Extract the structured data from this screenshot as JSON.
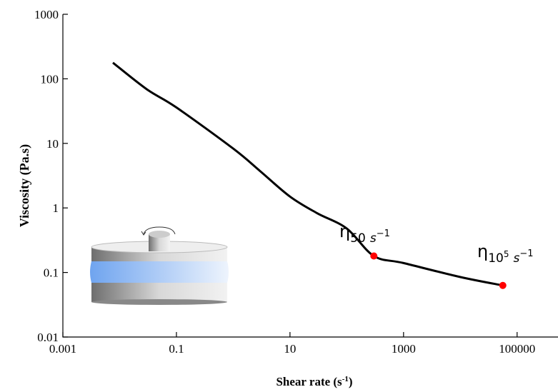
{
  "chart_data": {
    "type": "line",
    "x_label": {
      "text": "Shear rate (s",
      "sup": "-1",
      "end": ")"
    },
    "y_label": "Viscosity (Pa.s)",
    "log_x": true,
    "log_y": true,
    "xlim": [
      0.001,
      525000
    ],
    "ylim": [
      0.01,
      1000
    ],
    "xticks": [
      0.001,
      0.1,
      10,
      1000,
      100000
    ],
    "yticks": [
      0.01,
      0.1,
      1,
      10,
      100,
      1000
    ],
    "series": [
      {
        "color": "#000000",
        "x": [
          0.0076,
          0.03,
          0.1,
          1,
          3,
          10,
          30,
          100,
          300,
          1000,
          10000,
          56000
        ],
        "values": [
          178,
          69,
          36,
          8.3,
          3.7,
          1.5,
          0.83,
          0.48,
          0.18,
          0.14,
          0.085,
          0.063
        ]
      }
    ],
    "points": {
      "color": "#ff0000",
      "x": [
        300,
        56000
      ],
      "values": [
        0.18,
        0.063
      ]
    },
    "annotations": [
      {
        "base": "η",
        "sub": "50",
        "sub_unit": "s",
        "sup": "−1"
      },
      {
        "base": "η",
        "sub": "10",
        "sub_sup": "5",
        "sub_unit": "s",
        "sup": "−1"
      }
    ]
  }
}
